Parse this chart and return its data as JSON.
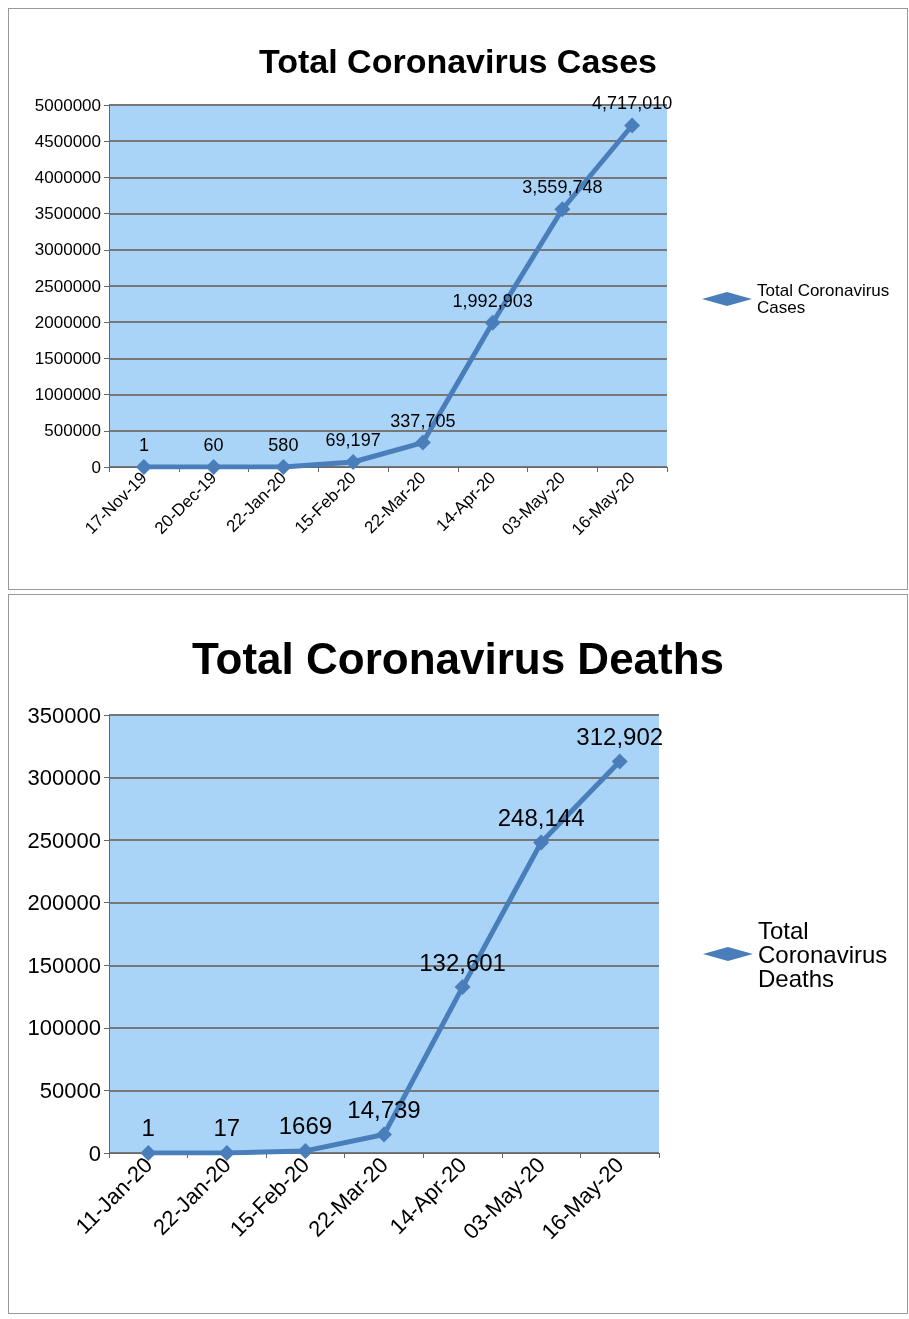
{
  "chart_data": [
    {
      "type": "line",
      "title": "Total Coronavirus Cases",
      "categories": [
        "17-Nov-19",
        "20-Dec-19",
        "22-Jan-20",
        "15-Feb-20",
        "22-Mar-20",
        "14-Apr-20",
        "03-May-20",
        "16-May-20"
      ],
      "series": [
        {
          "name": "Total Coronavirus Cases",
          "color": "#4a7ebb",
          "values": [
            1,
            60,
            580,
            69197,
            337705,
            1992903,
            3559748,
            4717010
          ],
          "value_labels": [
            "1",
            "60",
            "580",
            "69,197",
            "337,705",
            "1,992,903",
            "3,559,748",
            "4,717,010"
          ]
        }
      ],
      "ylim": [
        0,
        5000000
      ],
      "yticks": [
        0,
        500000,
        1000000,
        1500000,
        2000000,
        2500000,
        3000000,
        3500000,
        4000000,
        4500000,
        5000000
      ],
      "grid": "y",
      "legend": "right",
      "marker": "diamond"
    },
    {
      "type": "line",
      "title": "Total Coronavirus Deaths",
      "categories": [
        "11-Jan-20",
        "22-Jan-20",
        "15-Feb-20",
        "22-Mar-20",
        "14-Apr-20",
        "03-May-20",
        "16-May-20"
      ],
      "series": [
        {
          "name": "Total Coronavirus Deaths",
          "color": "#4a7ebb",
          "values": [
            1,
            17,
            1669,
            14739,
            132601,
            248144,
            312902
          ],
          "value_labels": [
            "1",
            "17",
            "1669",
            "14,739",
            "132,601",
            "248,144",
            "312,902"
          ]
        }
      ],
      "ylim": [
        0,
        350000
      ],
      "yticks": [
        0,
        50000,
        100000,
        150000,
        200000,
        250000,
        300000,
        350000
      ],
      "grid": "y",
      "legend": "right",
      "marker": "diamond"
    }
  ]
}
